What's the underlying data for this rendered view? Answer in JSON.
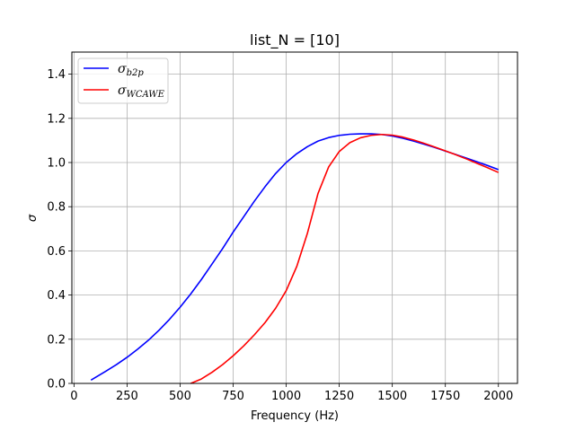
{
  "chart_data": {
    "type": "line",
    "title": "list_N = [10]",
    "xlabel": "Frequency (Hz)",
    "ylabel": "σ",
    "xlim": [
      -10,
      2090
    ],
    "ylim": [
      0,
      1.5
    ],
    "xticks": [
      0,
      250,
      500,
      750,
      1000,
      1250,
      1500,
      1750,
      2000
    ],
    "yticks": [
      0.0,
      0.2,
      0.4,
      0.6,
      0.8,
      1.0,
      1.2,
      1.4
    ],
    "xtick_labels": [
      "0",
      "250",
      "500",
      "750",
      "1000",
      "1250",
      "1500",
      "1750",
      "2000"
    ],
    "ytick_labels": [
      "0.0",
      "0.2",
      "0.4",
      "0.6",
      "0.8",
      "1.0",
      "1.2",
      "1.4"
    ],
    "grid": true,
    "legend_position": "top-left",
    "series": [
      {
        "name": "σ",
        "name_sub": "b2p",
        "color": "#0000ff",
        "x": [
          80,
          150,
          200,
          250,
          300,
          350,
          400,
          450,
          500,
          550,
          600,
          650,
          700,
          750,
          800,
          850,
          900,
          950,
          1000,
          1050,
          1100,
          1150,
          1200,
          1250,
          1300,
          1350,
          1400,
          1450,
          1500,
          1550,
          1600,
          1650,
          1700,
          1750,
          1800,
          1850,
          1900,
          1950,
          2000
        ],
        "y": [
          0.015,
          0.055,
          0.085,
          0.118,
          0.155,
          0.195,
          0.24,
          0.29,
          0.345,
          0.405,
          0.47,
          0.54,
          0.61,
          0.685,
          0.755,
          0.825,
          0.89,
          0.95,
          1.0,
          1.04,
          1.072,
          1.097,
          1.113,
          1.123,
          1.128,
          1.13,
          1.13,
          1.127,
          1.12,
          1.11,
          1.097,
          1.083,
          1.068,
          1.052,
          1.036,
          1.02,
          1.003,
          0.986,
          0.968
        ]
      },
      {
        "name": "σ",
        "name_sub": "WCAWE",
        "color": "#ff0000",
        "x": [
          550,
          600,
          650,
          700,
          750,
          800,
          850,
          900,
          950,
          1000,
          1050,
          1100,
          1150,
          1200,
          1250,
          1300,
          1350,
          1400,
          1450,
          1500,
          1550,
          1600,
          1650,
          1700,
          1750,
          1800,
          1850,
          1900,
          1950,
          2000
        ],
        "y": [
          0.0,
          0.02,
          0.05,
          0.085,
          0.125,
          0.17,
          0.22,
          0.275,
          0.34,
          0.42,
          0.53,
          0.68,
          0.86,
          0.98,
          1.05,
          1.09,
          1.112,
          1.123,
          1.127,
          1.124,
          1.115,
          1.102,
          1.087,
          1.07,
          1.053,
          1.035,
          1.016,
          0.996,
          0.976,
          0.955
        ]
      }
    ]
  }
}
